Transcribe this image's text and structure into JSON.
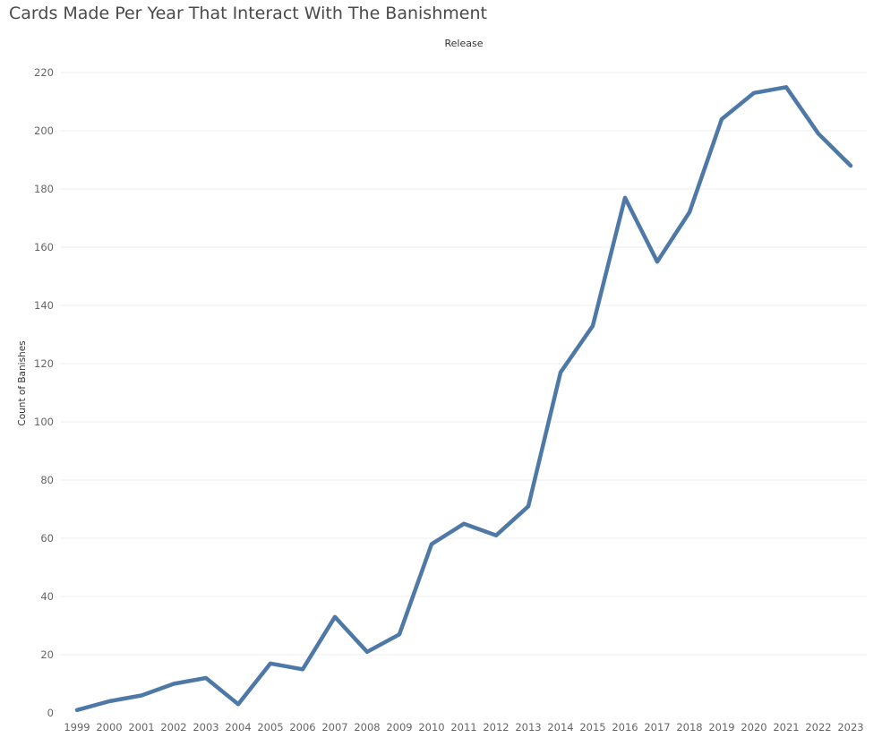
{
  "chart_data": {
    "type": "line",
    "title": "Cards Made Per Year That Interact With The Banishment",
    "column_header": "Release",
    "xlabel": "",
    "ylabel": "Count of Banishes",
    "x": [
      "1999",
      "2000",
      "2001",
      "2002",
      "2003",
      "2004",
      "2005",
      "2006",
      "2007",
      "2008",
      "2009",
      "2010",
      "2011",
      "2012",
      "2013",
      "2014",
      "2015",
      "2016",
      "2017",
      "2018",
      "2019",
      "2020",
      "2021",
      "2022",
      "2023"
    ],
    "series": [
      {
        "values": [
          1,
          4,
          6,
          10,
          12,
          3,
          17,
          15,
          33,
          21,
          27,
          58,
          65,
          61,
          71,
          117,
          133,
          177,
          155,
          172,
          204,
          213,
          215,
          199,
          188
        ]
      }
    ],
    "yticks": [
      0,
      20,
      40,
      60,
      80,
      100,
      120,
      140,
      160,
      180,
      200,
      220
    ],
    "ylim": [
      0,
      225
    ],
    "grid": "horizontal",
    "line_color": "#4e79a7",
    "gridline_color": "#ececec"
  }
}
